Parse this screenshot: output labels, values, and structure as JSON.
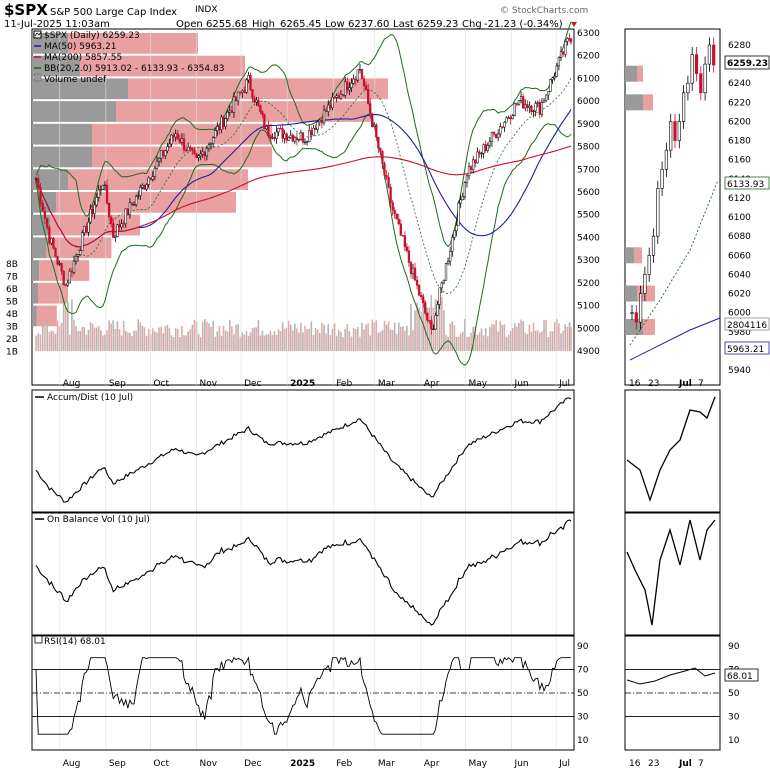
{
  "header": {
    "symbol": "$SPX",
    "name": "S&P 500 Large Cap Index",
    "exchange": "INDX",
    "date_time": "11-Jul-2025 11:03am",
    "open_label": "Open",
    "open": "6255.68",
    "high_label": "High",
    "high": "6265.45",
    "low_label": "Low",
    "low": "6237.60",
    "last_label": "Last",
    "last": "6259.23",
    "chg_label": "Chg",
    "chg": "-21.23 (-0.34%)",
    "watermark": "© StockCharts.com"
  },
  "legend": {
    "price": "$SPX (Daily) 6259.23",
    "ma50": "MA(50) 5963.21",
    "ma200": "MA(200) 5857.55",
    "bb": "BB(20,2.0) 5913.02 - 6133.93 - 6354.83",
    "volume": "Volume undef"
  },
  "colors": {
    "up": "#000000",
    "down": "#c8102e",
    "ma50": "#1f1f9e",
    "ma200": "#c8102e",
    "bb": "#1e6b1e",
    "vbp_gray": "#9a9a9a",
    "vbp_red": "#e8a0a0",
    "volume_gray": "#b4b4b4",
    "volume_red": "#e8a8a8"
  },
  "x_labels": [
    "Aug",
    "Sep",
    "Oct",
    "Nov",
    "Dec",
    "2025",
    "Feb",
    "Mar",
    "Apr",
    "May",
    "Jun",
    "Jul"
  ],
  "zoom_x_labels": [
    "16",
    "23",
    "Jul",
    "7"
  ],
  "price_axis": [
    "6300",
    "6200",
    "6100",
    "6000",
    "5900",
    "5800",
    "5700",
    "5600",
    "5500",
    "5400",
    "5300",
    "5200",
    "5100",
    "5000",
    "4900"
  ],
  "volume_axis": [
    "8B",
    "7B",
    "6B",
    "5B",
    "4B",
    "3B",
    "2B",
    "1B"
  ],
  "zoom_price_axis": [
    "6280",
    "6240",
    "6220",
    "6200",
    "6180",
    "6160",
    "6140",
    "6120",
    "6100",
    "6080",
    "6060",
    "6040",
    "6020",
    "6000",
    "5980",
    "5940"
  ],
  "zoom_tags": {
    "price": "6259.23",
    "bb_mid": "6133.93",
    "volume": "2804116",
    "ma50": "5963.21"
  },
  "panels": {
    "accum": "Accum/Dist (10 Jul)",
    "obv": "On Balance Vol (10 Jul)",
    "rsi": "RSI(14) 68.01",
    "rsi_value": "68.01",
    "rsi_axis": [
      "90",
      "70",
      "50",
      "30",
      "10"
    ]
  },
  "chart_data": {
    "type": "line",
    "title": "$SPX (Daily)",
    "series_anchor_points": [
      {
        "date": "2024-07-16",
        "close": 5660
      },
      {
        "date": "2024-07-25",
        "close": 5400
      },
      {
        "date": "2024-08-05",
        "close": 5190
      },
      {
        "date": "2024-08-30",
        "close": 5650
      },
      {
        "date": "2024-09-06",
        "close": 5410
      },
      {
        "date": "2024-10-18",
        "close": 5860
      },
      {
        "date": "2024-11-01",
        "close": 5730
      },
      {
        "date": "2024-12-06",
        "close": 6090
      },
      {
        "date": "2024-12-18",
        "close": 5870
      },
      {
        "date": "2025-01-13",
        "close": 5840
      },
      {
        "date": "2025-02-19",
        "close": 6144
      },
      {
        "date": "2025-03-13",
        "close": 5520
      },
      {
        "date": "2025-04-08",
        "close": 4982
      },
      {
        "date": "2025-05-02",
        "close": 5690
      },
      {
        "date": "2025-06-06",
        "close": 6000
      },
      {
        "date": "2025-06-20",
        "close": 5970
      },
      {
        "date": "2025-07-10",
        "close": 6280
      },
      {
        "date": "2025-07-11",
        "close": 6259.23
      }
    ],
    "ylim": [
      4850,
      6350
    ],
    "rsi_levels": [
      70,
      50,
      30
    ],
    "last_rsi": 68.01
  }
}
